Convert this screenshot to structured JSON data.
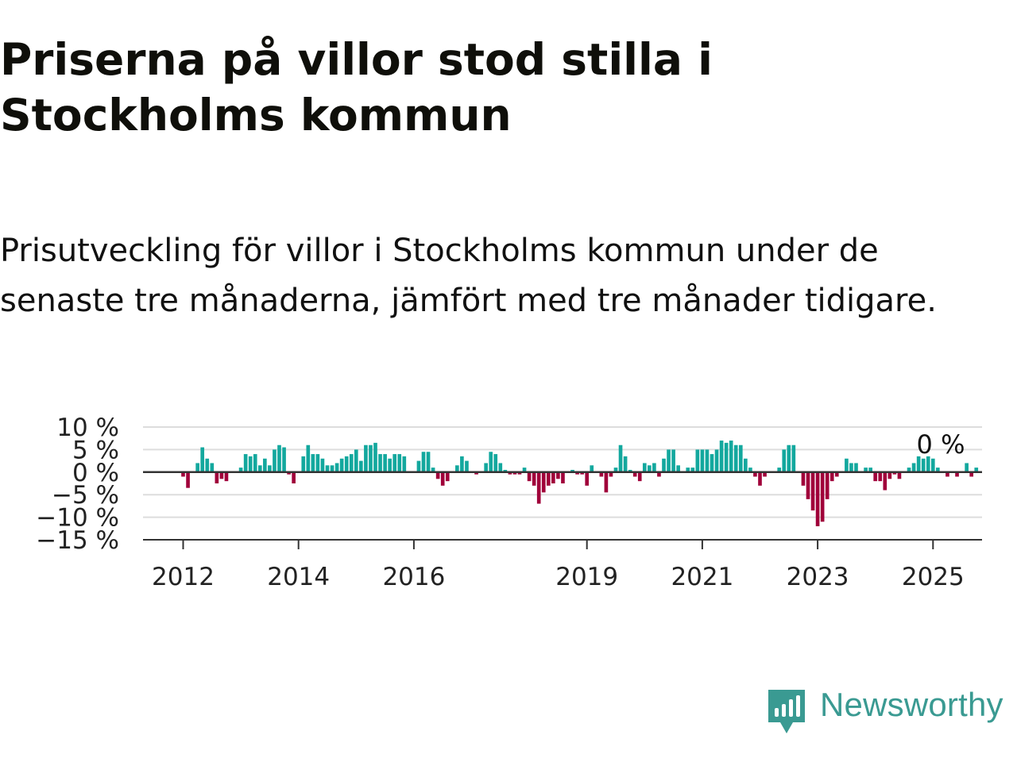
{
  "title": "Priserna på villor stod stilla i Stockholms kommun",
  "subtitle": "Prisutveckling för villor i Stockholms kommun under de senaste tre månaderna, jämfört med tre månader tidigare.",
  "logo": {
    "name": "Newsworthy",
    "icon": "newsworthy-bar-chart-icon"
  },
  "colors": {
    "positive": "#13a89e",
    "negative": "#a0003a",
    "grid": "#dddddd",
    "axis": "#333333",
    "brand": "#3a9a92"
  },
  "chart_data": {
    "type": "bar",
    "title": "",
    "xlabel": "",
    "ylabel": "",
    "ylim": [
      -15,
      10
    ],
    "y_ticks": [
      10,
      5,
      0,
      -5,
      -10,
      -15
    ],
    "y_tick_labels": [
      "10 %",
      "5 %",
      "0 %",
      "−5 %",
      "−10 %",
      "−15 %"
    ],
    "x_ticks": [
      "2012",
      "2014",
      "2016",
      "2019",
      "2021",
      "2023",
      "2025"
    ],
    "x_start": "2012-01",
    "x_end": "2025-07",
    "grid": true,
    "annotation": "0 %",
    "series": [
      {
        "values": [
          -1,
          -3.5,
          0,
          2,
          5.5,
          3,
          2,
          -2.5,
          -1.5,
          -2,
          0,
          0,
          1,
          4,
          3.5,
          4,
          1.5,
          3,
          1.5,
          5,
          6,
          5.5,
          -0.5,
          -2.5,
          0,
          3.5,
          6,
          4,
          4,
          3,
          1.5,
          1.5,
          2,
          3,
          3.5,
          4,
          5,
          2.5,
          6,
          6,
          6.5,
          4,
          4,
          3,
          4,
          4,
          3.5,
          0,
          0,
          2.5,
          4.5,
          4.5,
          1,
          -1.5,
          -3,
          -2,
          0,
          1.5,
          3.5,
          2.5,
          0,
          -0.5,
          0,
          2,
          4.5,
          4,
          2,
          0.5,
          -0.5,
          -0.5,
          -0.5,
          1,
          -2,
          -3,
          -7,
          -4.5,
          -3,
          -2.5,
          -1.5,
          -2.5,
          0,
          0.5,
          -0.5,
          -0.5,
          -3,
          1.5,
          0,
          -1,
          -4.5,
          -1,
          1,
          6,
          3.5,
          0.5,
          -1,
          -2,
          2,
          1.5,
          2,
          -1,
          3,
          5,
          5,
          1.5,
          0,
          1,
          1,
          5,
          5,
          5,
          4,
          5,
          7,
          6.5,
          7,
          6,
          6,
          3,
          1,
          -1,
          -3,
          -1,
          0,
          0,
          1,
          5,
          6,
          6,
          0,
          -3,
          -6,
          -8.5,
          -12,
          -11,
          -6,
          -2,
          -1,
          0,
          3,
          2,
          2,
          0,
          1,
          1,
          -2,
          -2,
          -4,
          -1.5,
          -0.5,
          -1.5,
          0,
          1,
          2,
          3.5,
          3,
          3.5,
          3,
          1,
          0,
          -1,
          0,
          -1,
          0,
          2,
          -1,
          1,
          0
        ]
      }
    ]
  }
}
